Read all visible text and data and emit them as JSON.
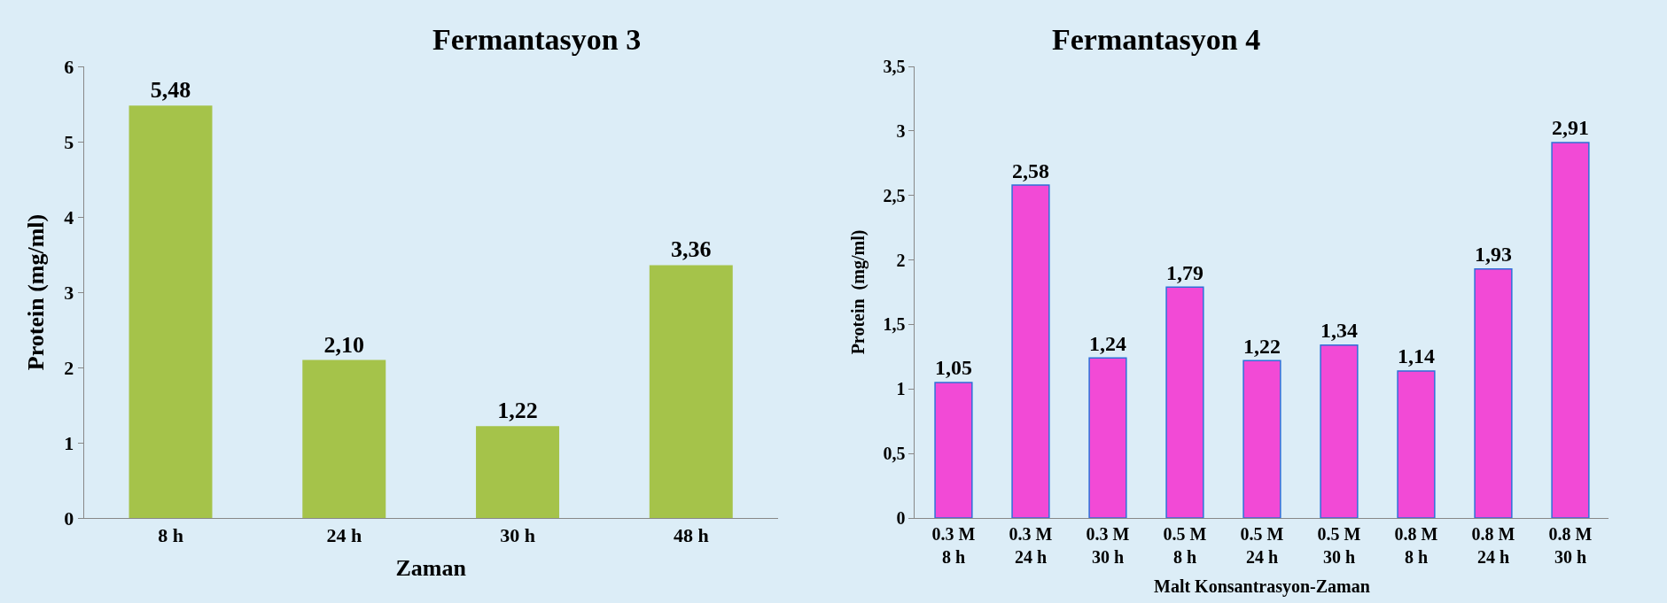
{
  "chart_data": [
    {
      "type": "bar",
      "title": "Fermantasyon 3",
      "xlabel": "Zaman",
      "ylabel": "Protein (mg/ml)",
      "categories": [
        "8 h",
        "24 h",
        "30 h",
        "48 h"
      ],
      "values": [
        5.48,
        2.1,
        1.22,
        3.36
      ],
      "color": "#a5c34a",
      "value_labels": [
        "5,48",
        "2,10",
        "1,22",
        "3,36"
      ],
      "ylim": [
        0,
        6
      ],
      "yticks": [
        0,
        1,
        2,
        3,
        4,
        5,
        6
      ]
    },
    {
      "type": "bar",
      "title": "Fermantasyon 4",
      "xlabel": "Malt Konsantrasyon-Zaman",
      "ylabel": "Protein  (mg/ml)",
      "categories": [
        "0.3 M\n8 h",
        "0.3 M\n24 h",
        "0.3 M\n30 h",
        "0.5 M\n8 h",
        "0.5 M\n24 h",
        "0.5 M\n30 h",
        "0.8 M\n8 h",
        "0.8 M\n24 h",
        "0.8 M\n30 h"
      ],
      "values": [
        1.05,
        2.58,
        1.24,
        1.79,
        1.22,
        1.34,
        1.14,
        1.93,
        2.91
      ],
      "color": "#f24ad6",
      "value_labels": [
        "1,05",
        "2,58",
        "1,24",
        "1,79",
        "1,22",
        "1,34",
        "1,14",
        "1,93",
        "2,91"
      ],
      "ylim": [
        0,
        3.5
      ],
      "yticks": [
        0,
        {
          "value": 0.5,
          "label": "0,5"
        },
        1,
        {
          "value": 1.5,
          "label": "1,5"
        },
        2,
        {
          "value": 2.5,
          "label": "2,5"
        },
        3,
        {
          "value": 3.5,
          "label": "3,5"
        }
      ]
    }
  ]
}
